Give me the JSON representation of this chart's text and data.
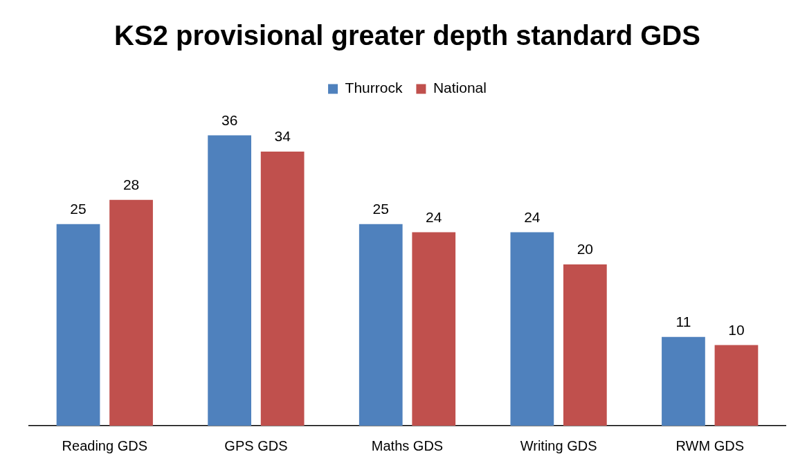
{
  "chart_data": {
    "type": "bar",
    "title": "KS2 provisional greater depth standard GDS",
    "categories": [
      "Reading GDS",
      "GPS GDS",
      "Maths GDS",
      "Writing GDS",
      "RWM GDS"
    ],
    "series": [
      {
        "name": "Thurrock",
        "color": "#4f81bd",
        "values": [
          25,
          36,
          25,
          24,
          11
        ]
      },
      {
        "name": "National",
        "color": "#c0504d",
        "values": [
          28,
          34,
          24,
          20,
          10
        ]
      }
    ],
    "data_labels": true,
    "legend": "top"
  }
}
